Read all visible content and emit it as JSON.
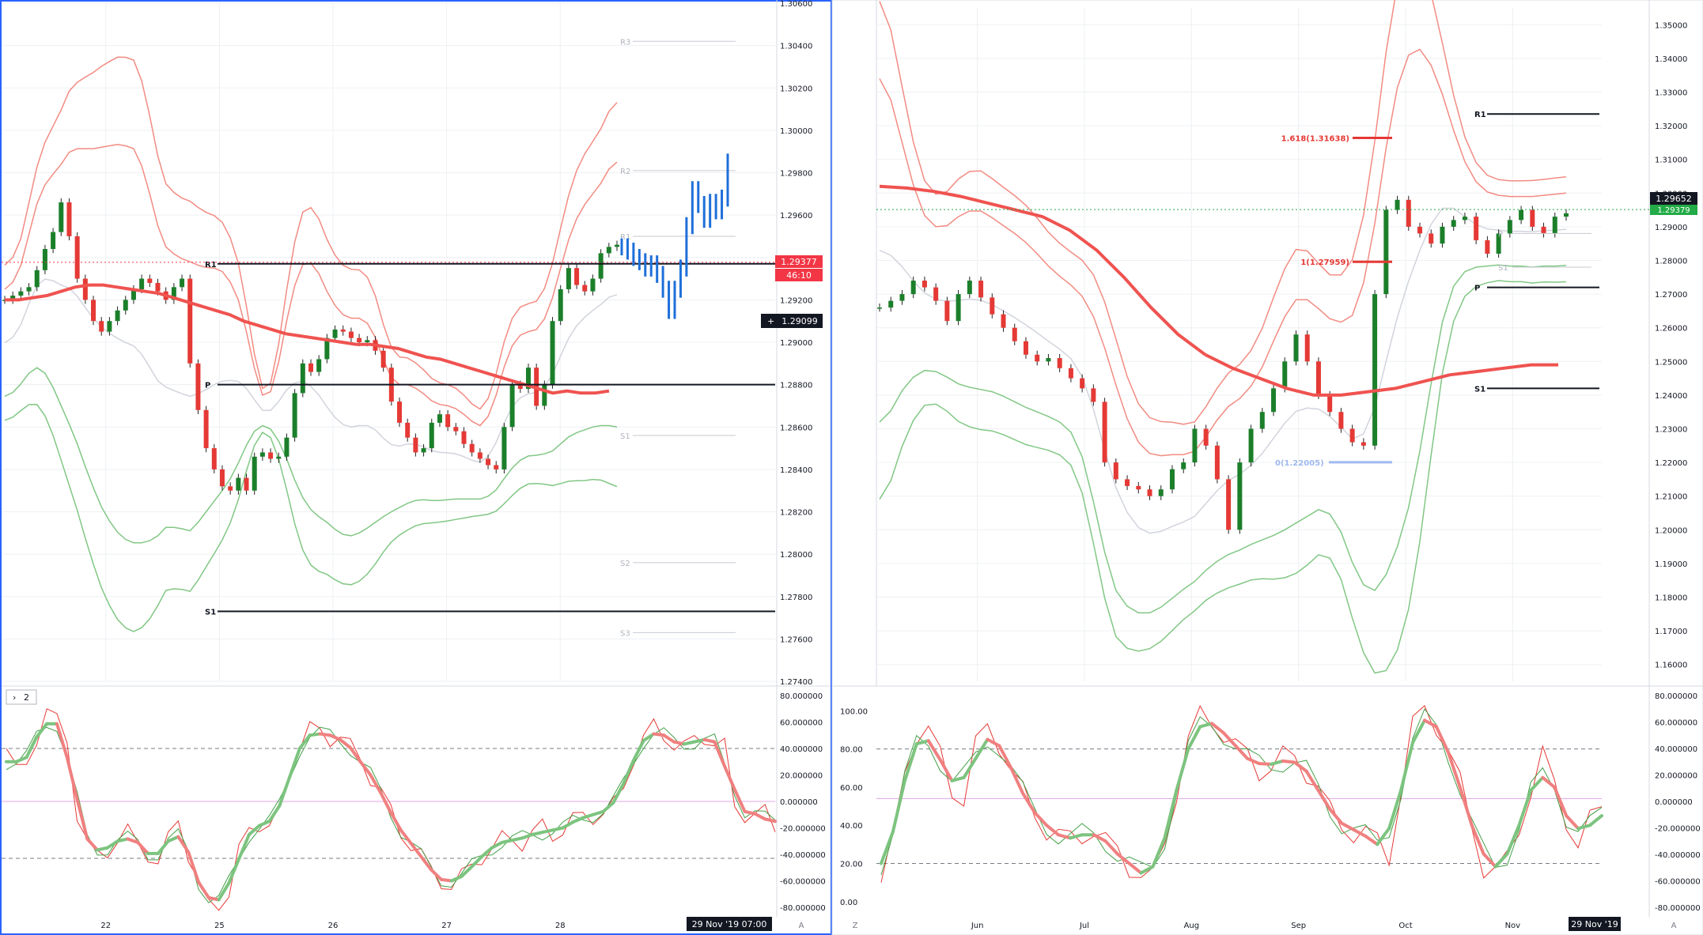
{
  "footer": {
    "left_datetime": "29 Nov '19  07:00",
    "right_datetime": "29 Nov '19",
    "auto_label": "A",
    "z_label": "Z"
  },
  "indicator_toggle": "2",
  "chart_data": [
    {
      "id": "left-price",
      "type": "candlestick",
      "timeframe": "intraday",
      "x_ticks": [
        "22",
        "25",
        "26",
        "27",
        "28"
      ],
      "ylim": [
        1.274,
        1.306
      ],
      "y_ticks": [
        "1.30600",
        "1.30400",
        "1.30200",
        "1.30000",
        "1.29800",
        "1.29600",
        "1.29400",
        "1.29200",
        "1.29000",
        "1.28800",
        "1.28600",
        "1.28400",
        "1.28200",
        "1.28000",
        "1.27800",
        "1.27600",
        "1.27400"
      ],
      "last_price": "1.29377",
      "countdown": "46:10",
      "crosshair_price": "1.29099",
      "pivots": [
        {
          "name": "R1",
          "value": 1.2937
        },
        {
          "name": "P",
          "value": 1.288
        },
        {
          "name": "S1",
          "value": 1.2773
        }
      ],
      "faint_pivots": [
        {
          "name": "R3",
          "value": 1.3042
        },
        {
          "name": "R2",
          "value": 1.2981
        },
        {
          "name": "R1",
          "value": 1.295
        },
        {
          "name": "S1",
          "value": 1.2856
        },
        {
          "name": "S2",
          "value": 1.2796
        },
        {
          "name": "S3",
          "value": 1.2763
        }
      ],
      "projection": [
        1.2945,
        1.2943,
        1.294,
        1.2938,
        1.2935,
        1.2937,
        1.2932,
        1.2925,
        1.2915,
        1.2925,
        1.2935,
        1.2955,
        1.2972,
        1.2965,
        1.2958,
        1.2966,
        1.2962,
        1.2968,
        1.2985
      ],
      "close": [
        1.292,
        1.2922,
        1.2924,
        1.2926,
        1.2934,
        1.2944,
        1.2952,
        1.2966,
        1.295,
        1.293,
        1.292,
        1.291,
        1.2905,
        1.291,
        1.2915,
        1.292,
        1.2925,
        1.293,
        1.2928,
        1.2924,
        1.292,
        1.2926,
        1.293,
        1.289,
        1.2868,
        1.285,
        1.284,
        1.2832,
        1.283,
        1.2836,
        1.283,
        1.2846,
        1.2848,
        1.2845,
        1.2846,
        1.2855,
        1.2876,
        1.289,
        1.2886,
        1.2892,
        1.2902,
        1.2906,
        1.2905,
        1.2902,
        1.29,
        1.2901,
        1.2896,
        1.2888,
        1.2872,
        1.2862,
        1.2855,
        1.2848,
        1.285,
        1.2862,
        1.2866,
        1.286,
        1.2858,
        1.2852,
        1.2848,
        1.2845,
        1.2842,
        1.284,
        1.286,
        1.288,
        1.2878,
        1.2888,
        1.287,
        1.288,
        1.291,
        1.2925,
        1.2935,
        1.2927,
        1.2924,
        1.293,
        1.2942,
        1.2945,
        1.2946
      ],
      "bb_upper": [
        1.2924,
        1.2926,
        1.2935,
        1.2948,
        1.297,
        1.2978,
        1.2975,
        1.2985,
        1.2992,
        1.2992,
        1.299,
        1.2992,
        1.2992,
        1.2992,
        1.2994,
        1.2994,
        1.299,
        1.299,
        1.297,
        1.295,
        1.2945,
        1.294,
        1.294,
        1.2938,
        1.2936,
        1.2935,
        1.2935,
        1.2935,
        1.293,
        1.292,
        1.291,
        1.2885,
        1.2868,
        1.2872,
        1.289,
        1.291,
        1.293,
        1.294,
        1.294,
        1.2932,
        1.2925,
        1.2915,
        1.2912,
        1.2912,
        1.291,
        1.2912,
        1.2905,
        1.289,
        1.288,
        1.288,
        1.288,
        1.288,
        1.2875,
        1.2872,
        1.287,
        1.287,
        1.287,
        1.2866,
        1.2862,
        1.286,
        1.286,
        1.2875,
        1.289,
        1.29,
        1.2905,
        1.2905,
        1.2905,
        1.2908,
        1.292,
        1.2935,
        1.295,
        1.296,
        1.2965,
        1.297,
        1.2975,
        1.298,
        1.299
      ],
      "bb_lower": [
        1.2874,
        1.2875,
        1.288,
        1.2886,
        1.289,
        1.2888,
        1.2878,
        1.287,
        1.2862,
        1.2852,
        1.2842,
        1.283,
        1.2822,
        1.2815,
        1.281,
        1.2806,
        1.2805,
        1.2805,
        1.2806,
        1.2808,
        1.2812,
        1.2818,
        1.2808,
        1.281,
        1.2815,
        1.282,
        1.2825,
        1.283,
        1.2835,
        1.2842,
        1.2852,
        1.286,
        1.2862,
        1.286,
        1.2855,
        1.2845,
        1.2835,
        1.2825,
        1.282,
        1.2818,
        1.2815,
        1.2812,
        1.2808,
        1.2808,
        1.281,
        1.2812,
        1.2815,
        1.2818,
        1.282,
        1.2822,
        1.2824,
        1.2826,
        1.2826,
        1.2825,
        1.2825,
        1.2826,
        1.2826,
        1.2826,
        1.2826,
        1.2826,
        1.2826,
        1.283,
        1.2835,
        1.2842,
        1.2845,
        1.2846,
        1.2848,
        1.2846,
        1.2848,
        1.2852,
        1.2856,
        1.2858,
        1.2858,
        1.286,
        1.2862,
        1.286,
        1.286
      ],
      "ema": [
        1.292,
        1.292,
        1.2921,
        1.2922,
        1.2924,
        1.2926,
        1.2927,
        1.2927,
        1.2926,
        1.2925,
        1.2924,
        1.2923,
        1.2921,
        1.2919,
        1.2917,
        1.2915,
        1.2913,
        1.291,
        1.2908,
        1.2906,
        1.2904,
        1.2903,
        1.2902,
        1.2901,
        1.29,
        1.2899,
        1.2899,
        1.2898,
        1.2897,
        1.2895,
        1.2893,
        1.2892,
        1.289,
        1.2888,
        1.2886,
        1.2884,
        1.2882,
        1.288,
        1.2878,
        1.2876,
        1.2877,
        1.2876,
        1.2876,
        1.2877
      ],
      "ema_offset": 0
    },
    {
      "id": "left-osc",
      "type": "line",
      "ylim": [
        -80,
        80
      ],
      "y_ticks": [
        "80.000000",
        "60.000000",
        "40.000000",
        "20.000000",
        "0.000000",
        "-20.000000",
        "-40.000000",
        "-60.000000",
        "-80.000000"
      ],
      "levels": [
        40,
        0,
        -43
      ],
      "series": [
        {
          "values": [
            40,
            20,
            30,
            50,
            66,
            60,
            50,
            -10,
            -35,
            -40,
            -35,
            -30,
            -25,
            -30,
            -38,
            -50,
            -30,
            -10,
            -40,
            -65,
            -78,
            -75,
            -70,
            -40,
            -20,
            -15,
            -20,
            -10,
            20,
            45,
            55,
            50,
            48,
            52,
            40,
            30,
            20,
            10,
            -10,
            -25,
            -30,
            -40,
            -55,
            -60,
            -62,
            -58,
            -50,
            -40,
            -35,
            -30,
            -28,
            -30,
            -25,
            -20,
            -25,
            -20,
            -15,
            -12,
            -10,
            -8,
            -5,
            10,
            35,
            48,
            55,
            50,
            45,
            40,
            45,
            50,
            45,
            40,
            -5,
            -8,
            -10,
            -10,
            -20
          ]
        }
      ]
    },
    {
      "id": "right-price",
      "type": "candlestick",
      "timeframe": "daily",
      "x_ticks": [
        "Jun",
        "Jul",
        "Aug",
        "Sep",
        "Oct",
        "Nov"
      ],
      "ylim": [
        1.155,
        1.355
      ],
      "y_ticks": [
        "1.35000",
        "1.34000",
        "1.33000",
        "1.32000",
        "1.31000",
        "1.30000",
        "1.29000",
        "1.28000",
        "1.27000",
        "1.26000",
        "1.25000",
        "1.24000",
        "1.23000",
        "1.22000",
        "1.21000",
        "1.20000",
        "1.19000",
        "1.18000",
        "1.17000",
        "1.16000"
      ],
      "last_price": "1.29652",
      "alt_price": "1.29379",
      "pivots": [
        {
          "name": "R1",
          "value": 1.3235
        },
        {
          "name": "P",
          "value": 1.272
        },
        {
          "name": "S1",
          "value": 1.242
        }
      ],
      "faint_pivots": [
        {
          "name": "P",
          "value": 1.288
        },
        {
          "name": "S1",
          "value": 1.278
        }
      ],
      "fib_levels": [
        {
          "label": "1.618(1.31638)",
          "value": 1.31638
        },
        {
          "label": "1(1.27959)",
          "value": 1.27959
        },
        {
          "label": "0(1.22005)",
          "value": 1.22005
        }
      ],
      "close": [
        1.266,
        1.268,
        1.27,
        1.274,
        1.272,
        1.268,
        1.262,
        1.27,
        1.274,
        1.269,
        1.264,
        1.26,
        1.256,
        1.252,
        1.25,
        1.251,
        1.248,
        1.245,
        1.242,
        1.238,
        1.22,
        1.215,
        1.213,
        1.212,
        1.21,
        1.212,
        1.218,
        1.22,
        1.23,
        1.225,
        1.215,
        1.2,
        1.22,
        1.23,
        1.235,
        1.242,
        1.25,
        1.258,
        1.25,
        1.24,
        1.235,
        1.23,
        1.226,
        1.225,
        1.27,
        1.295,
        1.298,
        1.29,
        1.288,
        1.285,
        1.29,
        1.292,
        1.293,
        1.286,
        1.282,
        1.288,
        1.292,
        1.295,
        1.29,
        1.288,
        1.293,
        1.294
      ],
      "bb_upper": [
        1.338,
        1.33,
        1.315,
        1.3,
        1.292,
        1.288,
        1.29,
        1.293,
        1.296,
        1.295,
        1.293,
        1.29,
        1.288,
        1.286,
        1.282,
        1.278,
        1.275,
        1.273,
        1.27,
        1.265,
        1.255,
        1.242,
        1.232,
        1.225,
        1.221,
        1.222,
        1.223,
        1.222,
        1.222,
        1.226,
        1.235,
        1.237,
        1.238,
        1.242,
        1.248,
        1.255,
        1.265,
        1.27,
        1.27,
        1.265,
        1.262,
        1.261,
        1.262,
        1.268,
        1.29,
        1.315,
        1.335,
        1.344,
        1.344,
        1.34,
        1.33,
        1.318,
        1.308,
        1.302,
        1.3,
        1.299,
        1.299,
        1.299,
        1.299,
        1.299,
        1.3,
        1.3
      ],
      "bb_lower": [
        1.228,
        1.236,
        1.242,
        1.246,
        1.248,
        1.248,
        1.245,
        1.243,
        1.242,
        1.242,
        1.241,
        1.24,
        1.238,
        1.236,
        1.235,
        1.234,
        1.232,
        1.23,
        1.225,
        1.21,
        1.19,
        1.18,
        1.176,
        1.176,
        1.174,
        1.176,
        1.181,
        1.182,
        1.184,
        1.188,
        1.192,
        1.192,
        1.194,
        1.196,
        1.197,
        1.198,
        1.2,
        1.202,
        1.204,
        1.206,
        1.208,
        1.2,
        1.19,
        1.181,
        1.18,
        1.185,
        1.195,
        1.205,
        1.22,
        1.245,
        1.265,
        1.275,
        1.277,
        1.278,
        1.279,
        1.278,
        1.279,
        1.278,
        1.278,
        1.278,
        1.279,
        1.278
      ],
      "ema": [
        1.302,
        1.3015,
        1.3005,
        1.299,
        1.297,
        1.295,
        1.293,
        1.289,
        1.283,
        1.275,
        1.266,
        1.258,
        1.252,
        1.248,
        1.245,
        1.242,
        1.24,
        1.24,
        1.241,
        1.242,
        1.244,
        1.246,
        1.247,
        1.248,
        1.249,
        1.249
      ],
      "ema_offset": 0
    },
    {
      "id": "right-osc",
      "type": "line",
      "ylim": [
        -3,
        108
      ],
      "y_ticks": [
        "100.00",
        "80.00",
        "60.00",
        "40.00",
        "20.00",
        "0.00"
      ],
      "y_ticks_right": [
        "80.000000",
        "60.000000",
        "40.000000",
        "20.000000",
        "0.000000",
        "-20.000000",
        "-40.000000",
        "-60.000000",
        "-80.000000"
      ],
      "levels": [
        80,
        54,
        20
      ],
      "series": [
        {
          "values": [
            10,
            30,
            70,
            90,
            88,
            75,
            60,
            55,
            80,
            90,
            85,
            70,
            55,
            45,
            40,
            35,
            30,
            35,
            40,
            30,
            25,
            20,
            15,
            10,
            30,
            60,
            85,
            95,
            95,
            90,
            80,
            75,
            70,
            72,
            74,
            75,
            70,
            60,
            45,
            40,
            38,
            35,
            30,
            25,
            60,
            90,
            100,
            95,
            80,
            60,
            40,
            20,
            15,
            20,
            40,
            60,
            75,
            60,
            45,
            30,
            40,
            50
          ]
        }
      ]
    }
  ]
}
